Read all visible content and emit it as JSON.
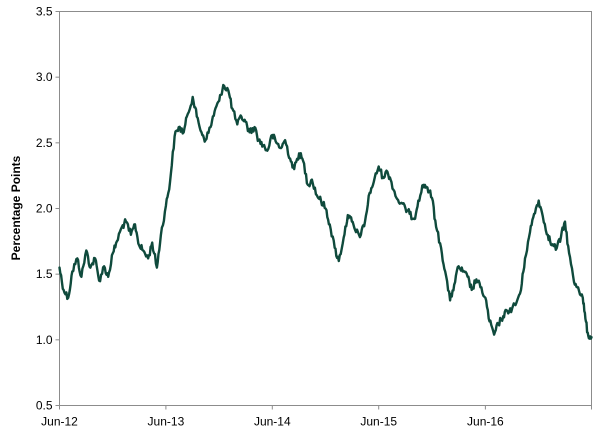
{
  "chart_data": {
    "type": "line",
    "title": "",
    "xlabel": "",
    "ylabel": "Percentage Points",
    "ylim": [
      0.5,
      3.5
    ],
    "xlim": [
      "2012-06-01",
      "2017-05-31"
    ],
    "y_ticks": [
      "0.5",
      "1.0",
      "1.5",
      "2.0",
      "2.5",
      "3.0",
      "3.5"
    ],
    "x_ticks": [
      {
        "label": "Jun-12",
        "date": "2012-06-01"
      },
      {
        "label": "Jun-13",
        "date": "2013-06-01"
      },
      {
        "label": "Jun-14",
        "date": "2014-06-01"
      },
      {
        "label": "Jun-15",
        "date": "2015-06-01"
      },
      {
        "label": "Jun-16",
        "date": "2016-06-01"
      }
    ],
    "grid": false,
    "legend": "none",
    "series": [
      {
        "color": "#0f4a3c",
        "points": [
          [
            "2012-06-01",
            1.55
          ],
          [
            "2012-06-15",
            1.38
          ],
          [
            "2012-07-01",
            1.32
          ],
          [
            "2012-07-15",
            1.52
          ],
          [
            "2012-08-01",
            1.62
          ],
          [
            "2012-08-15",
            1.48
          ],
          [
            "2012-09-01",
            1.68
          ],
          [
            "2012-09-15",
            1.55
          ],
          [
            "2012-10-01",
            1.62
          ],
          [
            "2012-10-15",
            1.45
          ],
          [
            "2012-11-01",
            1.56
          ],
          [
            "2012-11-15",
            1.48
          ],
          [
            "2012-12-01",
            1.66
          ],
          [
            "2012-12-15",
            1.75
          ],
          [
            "2013-01-01",
            1.86
          ],
          [
            "2013-01-15",
            1.9
          ],
          [
            "2013-02-01",
            1.8
          ],
          [
            "2013-02-15",
            1.88
          ],
          [
            "2013-03-01",
            1.72
          ],
          [
            "2013-03-15",
            1.68
          ],
          [
            "2013-04-01",
            1.62
          ],
          [
            "2013-04-15",
            1.74
          ],
          [
            "2013-05-01",
            1.55
          ],
          [
            "2013-05-15",
            1.8
          ],
          [
            "2013-06-01",
            2.02
          ],
          [
            "2013-06-15",
            2.2
          ],
          [
            "2013-07-01",
            2.55
          ],
          [
            "2013-07-15",
            2.62
          ],
          [
            "2013-08-01",
            2.58
          ],
          [
            "2013-08-15",
            2.72
          ],
          [
            "2013-09-01",
            2.85
          ],
          [
            "2013-09-15",
            2.7
          ],
          [
            "2013-10-01",
            2.58
          ],
          [
            "2013-10-15",
            2.52
          ],
          [
            "2013-11-01",
            2.62
          ],
          [
            "2013-11-15",
            2.74
          ],
          [
            "2013-12-01",
            2.82
          ],
          [
            "2013-12-15",
            2.94
          ],
          [
            "2014-01-01",
            2.9
          ],
          [
            "2014-01-15",
            2.76
          ],
          [
            "2014-02-01",
            2.64
          ],
          [
            "2014-02-15",
            2.7
          ],
          [
            "2014-03-01",
            2.66
          ],
          [
            "2014-03-15",
            2.58
          ],
          [
            "2014-04-01",
            2.62
          ],
          [
            "2014-04-15",
            2.52
          ],
          [
            "2014-05-01",
            2.48
          ],
          [
            "2014-05-15",
            2.44
          ],
          [
            "2014-06-01",
            2.56
          ],
          [
            "2014-06-15",
            2.5
          ],
          [
            "2014-07-01",
            2.46
          ],
          [
            "2014-07-15",
            2.52
          ],
          [
            "2014-08-01",
            2.38
          ],
          [
            "2014-08-15",
            2.3
          ],
          [
            "2014-09-01",
            2.42
          ],
          [
            "2014-09-15",
            2.36
          ],
          [
            "2014-10-01",
            2.18
          ],
          [
            "2014-10-15",
            2.22
          ],
          [
            "2014-11-01",
            2.1
          ],
          [
            "2014-11-15",
            2.06
          ],
          [
            "2014-12-01",
            2.0
          ],
          [
            "2014-12-15",
            1.88
          ],
          [
            "2015-01-01",
            1.7
          ],
          [
            "2015-01-15",
            1.6
          ],
          [
            "2015-02-01",
            1.78
          ],
          [
            "2015-02-15",
            1.95
          ],
          [
            "2015-03-01",
            1.9
          ],
          [
            "2015-03-15",
            1.82
          ],
          [
            "2015-04-01",
            1.8
          ],
          [
            "2015-04-15",
            1.9
          ],
          [
            "2015-05-01",
            2.12
          ],
          [
            "2015-05-15",
            2.2
          ],
          [
            "2015-06-01",
            2.32
          ],
          [
            "2015-06-15",
            2.24
          ],
          [
            "2015-07-01",
            2.28
          ],
          [
            "2015-07-15",
            2.2
          ],
          [
            "2015-08-01",
            2.08
          ],
          [
            "2015-08-15",
            2.04
          ],
          [
            "2015-09-01",
            2.0
          ],
          [
            "2015-09-15",
            1.96
          ],
          [
            "2015-10-01",
            1.92
          ],
          [
            "2015-10-15",
            2.06
          ],
          [
            "2015-11-01",
            2.18
          ],
          [
            "2015-11-15",
            2.16
          ],
          [
            "2015-12-01",
            2.08
          ],
          [
            "2015-12-15",
            1.86
          ],
          [
            "2016-01-01",
            1.7
          ],
          [
            "2016-01-15",
            1.52
          ],
          [
            "2016-02-01",
            1.3
          ],
          [
            "2016-02-15",
            1.42
          ],
          [
            "2016-03-01",
            1.56
          ],
          [
            "2016-03-15",
            1.52
          ],
          [
            "2016-04-01",
            1.48
          ],
          [
            "2016-04-15",
            1.38
          ],
          [
            "2016-05-01",
            1.46
          ],
          [
            "2016-05-15",
            1.4
          ],
          [
            "2016-06-01",
            1.32
          ],
          [
            "2016-06-15",
            1.14
          ],
          [
            "2016-07-01",
            1.04
          ],
          [
            "2016-07-15",
            1.12
          ],
          [
            "2016-08-01",
            1.18
          ],
          [
            "2016-08-15",
            1.22
          ],
          [
            "2016-09-01",
            1.24
          ],
          [
            "2016-09-15",
            1.28
          ],
          [
            "2016-10-01",
            1.38
          ],
          [
            "2016-10-15",
            1.62
          ],
          [
            "2016-11-01",
            1.82
          ],
          [
            "2016-11-15",
            1.96
          ],
          [
            "2016-12-01",
            2.06
          ],
          [
            "2016-12-15",
            1.94
          ],
          [
            "2017-01-01",
            1.8
          ],
          [
            "2017-01-15",
            1.72
          ],
          [
            "2017-02-01",
            1.7
          ],
          [
            "2017-02-15",
            1.78
          ],
          [
            "2017-03-01",
            1.9
          ],
          [
            "2017-03-15",
            1.66
          ],
          [
            "2017-04-01",
            1.44
          ],
          [
            "2017-04-15",
            1.4
          ],
          [
            "2017-05-01",
            1.32
          ],
          [
            "2017-05-10",
            1.16
          ],
          [
            "2017-05-20",
            1.03
          ],
          [
            "2017-05-31",
            1.02
          ]
        ]
      }
    ]
  }
}
